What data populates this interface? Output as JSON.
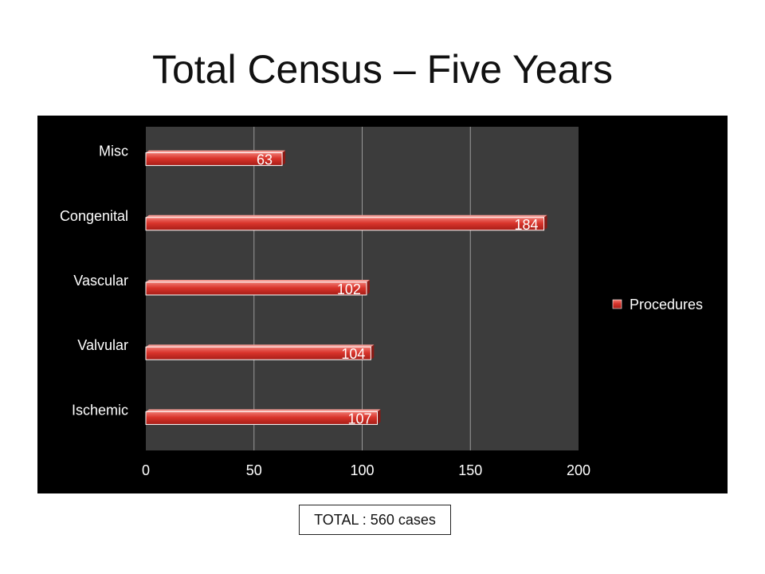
{
  "slide": {
    "title": "Total Census – Five Years",
    "total_label": "TOTAL : 560 cases"
  },
  "chart_data": {
    "type": "bar",
    "orientation": "horizontal",
    "categories": [
      "Ischemic",
      "Valvular",
      "Vascular",
      "Congenital",
      "Misc"
    ],
    "series": [
      {
        "name": "Procedures",
        "values": [
          107,
          104,
          102,
          184,
          63
        ],
        "color": "#d9342b"
      }
    ],
    "data_labels": [
      "107",
      "104",
      "102",
      "184",
      "63"
    ],
    "xlim": [
      0,
      200
    ],
    "x_ticks": [
      0,
      50,
      100,
      150,
      200
    ],
    "grid": true,
    "legend_position": "right",
    "background": "#000000",
    "plot_background": "#3c3c3c"
  }
}
